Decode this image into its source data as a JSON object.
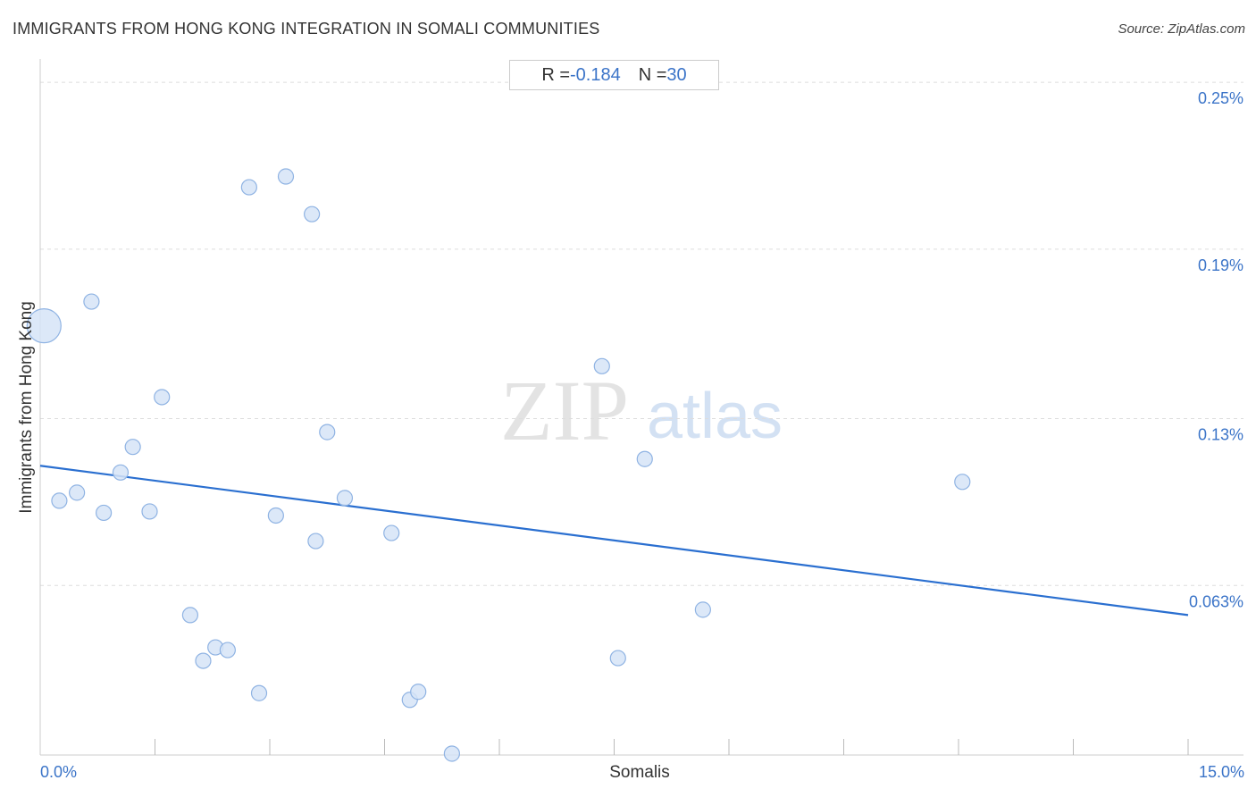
{
  "title": "IMMIGRANTS FROM HONG KONG INTEGRATION IN SOMALI COMMUNITIES",
  "source": "Source: ZipAtlas.com",
  "stats": {
    "r_label": "R = ",
    "r_value": "-0.184",
    "n_label": "N = ",
    "n_value": "30"
  },
  "watermark": {
    "zip": "ZIP",
    "atlas": "atlas"
  },
  "colors": {
    "accent": "#3b74c8",
    "point_fill": "#d6e4f7",
    "point_stroke": "#8fb3e3",
    "trend": "#2a6fd0",
    "grid": "#dddddd"
  },
  "chart_data": {
    "type": "scatter",
    "title": "IMMIGRANTS FROM HONG KONG INTEGRATION IN SOMALI COMMUNITIES",
    "xlabel": "Somalis",
    "ylabel": "Immigrants from Hong Kong",
    "xlim": [
      0,
      15
    ],
    "ylim": [
      0,
      0.26
    ],
    "x_tick_labels": [
      {
        "value": 0,
        "label": "0.0%"
      },
      {
        "value": 15,
        "label": "15.0%"
      }
    ],
    "y_tick_labels": [
      {
        "value": 0.063,
        "label": "0.063%"
      },
      {
        "value": 0.125,
        "label": "0.13%"
      },
      {
        "value": 0.188,
        "label": "0.19%"
      },
      {
        "value": 0.25,
        "label": "0.25%"
      }
    ],
    "x_minor_ticks": [
      1.5,
      3,
      4.5,
      6,
      7.5,
      9,
      10.5,
      12,
      13.5,
      15
    ],
    "grid": true,
    "trend_line": {
      "x": [
        0,
        15
      ],
      "y": [
        0.1075,
        0.052
      ]
    },
    "points": [
      {
        "x": 0.05,
        "y": 0.1595,
        "size": "large"
      },
      {
        "x": 0.25,
        "y": 0.0945
      },
      {
        "x": 0.48,
        "y": 0.0975
      },
      {
        "x": 0.67,
        "y": 0.1685
      },
      {
        "x": 0.83,
        "y": 0.09
      },
      {
        "x": 1.05,
        "y": 0.105
      },
      {
        "x": 1.21,
        "y": 0.1145
      },
      {
        "x": 1.43,
        "y": 0.0905
      },
      {
        "x": 1.59,
        "y": 0.133
      },
      {
        "x": 1.96,
        "y": 0.052
      },
      {
        "x": 2.13,
        "y": 0.035
      },
      {
        "x": 2.29,
        "y": 0.04
      },
      {
        "x": 2.45,
        "y": 0.039
      },
      {
        "x": 2.73,
        "y": 0.211
      },
      {
        "x": 2.86,
        "y": 0.023
      },
      {
        "x": 3.08,
        "y": 0.089
      },
      {
        "x": 3.21,
        "y": 0.215
      },
      {
        "x": 3.55,
        "y": 0.201
      },
      {
        "x": 3.6,
        "y": 0.0795
      },
      {
        "x": 3.75,
        "y": 0.12
      },
      {
        "x": 3.98,
        "y": 0.0955
      },
      {
        "x": 4.59,
        "y": 0.0825
      },
      {
        "x": 4.83,
        "y": 0.0205
      },
      {
        "x": 4.94,
        "y": 0.0235
      },
      {
        "x": 5.38,
        "y": 0.0005
      },
      {
        "x": 7.34,
        "y": 0.1445
      },
      {
        "x": 7.55,
        "y": 0.036
      },
      {
        "x": 7.9,
        "y": 0.11
      },
      {
        "x": 8.66,
        "y": 0.054
      },
      {
        "x": 12.05,
        "y": 0.1015
      }
    ]
  }
}
